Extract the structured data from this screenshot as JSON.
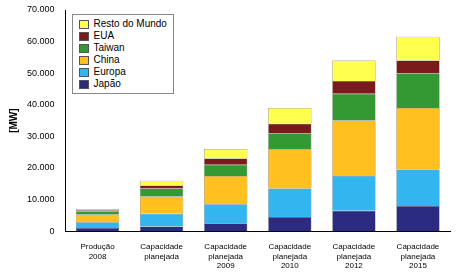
{
  "chart_data": {
    "type": "bar",
    "stacked": true,
    "y_label": "[MW]",
    "categories": [
      "Produção 2008",
      "Capacidade planejada",
      "Capacidade planejada 2009",
      "Capacidade planejada 2010",
      "Capacidade planejada 2012",
      "Capacidade planejada 2015"
    ],
    "series": [
      {
        "name": "Japão",
        "color": "#2b2b82",
        "values": [
          1000,
          1500,
          2500,
          4500,
          6500,
          8000
        ]
      },
      {
        "name": "Europa",
        "color": "#33b5f0",
        "values": [
          1800,
          4000,
          6000,
          9000,
          11000,
          11500
        ]
      },
      {
        "name": "China",
        "color": "#ffc020",
        "values": [
          2500,
          5500,
          9000,
          12500,
          17500,
          19500
        ]
      },
      {
        "name": "Taiwan",
        "color": "#339933",
        "values": [
          900,
          2500,
          3500,
          5000,
          8500,
          11000
        ]
      },
      {
        "name": "EUA",
        "color": "#7b1a1a",
        "values": [
          400,
          1000,
          2000,
          3000,
          4000,
          4000
        ]
      },
      {
        "name": "Resto do Mundo",
        "color": "#ffff4d",
        "values": [
          400,
          1500,
          3000,
          5000,
          6500,
          7500
        ]
      }
    ],
    "ylim": [
      0,
      70000
    ],
    "yticks": [
      0,
      {
        "value": 10000,
        "label": "10.000"
      },
      {
        "value": 20000,
        "label": "20.000"
      },
      {
        "value": 30000,
        "label": "30.000"
      },
      {
        "value": 40000,
        "label": "40.000"
      },
      {
        "value": 50000,
        "label": "50.000"
      },
      {
        "value": 60000,
        "label": "60.000"
      },
      {
        "value": 70000,
        "label": "70.000"
      }
    ],
    "grid": false,
    "legend": "top-left"
  }
}
